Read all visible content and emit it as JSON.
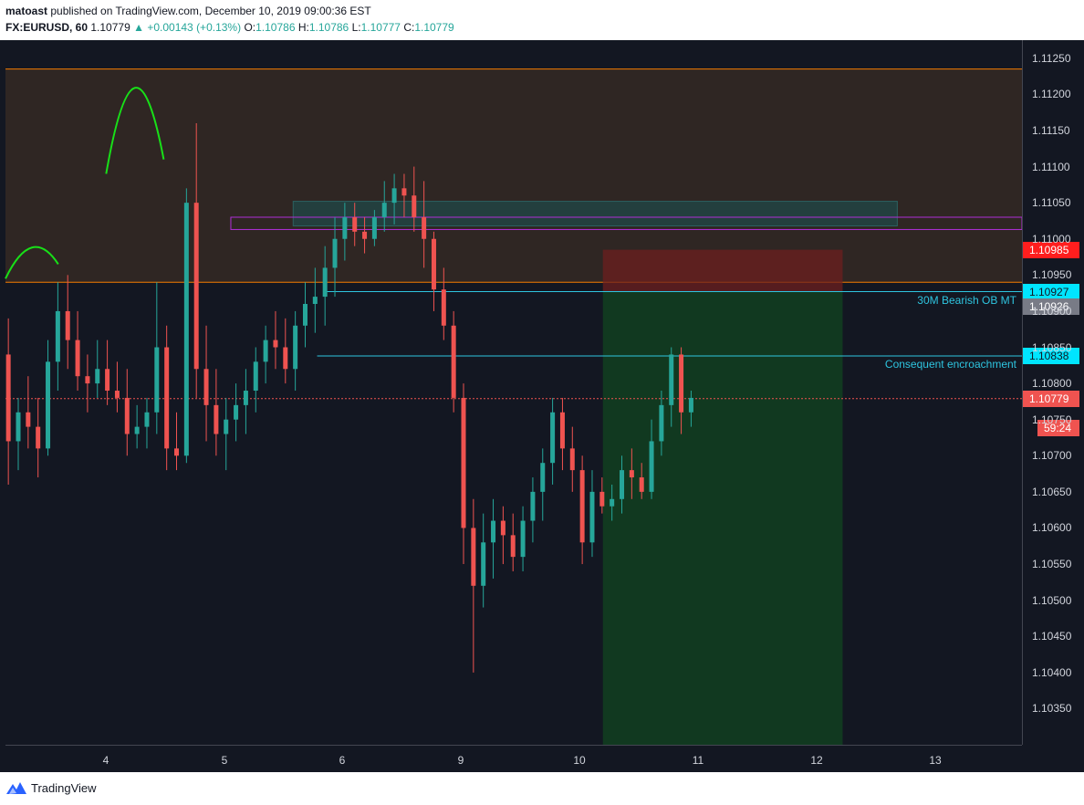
{
  "header": {
    "author": "matoast",
    "published_text": " published on TradingView.com, December 10, 2019 09:00:36 EST",
    "symbol": "FX:EURUSD, 60",
    "last": "1.10779",
    "change": "+0.00143 (+0.13%)",
    "o_label": "O:",
    "o": "1.10786",
    "h_label": "H:",
    "h": "1.10786",
    "l_label": "L:",
    "l": "1.10777",
    "c_label": "C:",
    "c": "1.10779"
  },
  "footer": {
    "brand": "TradingView"
  },
  "colors": {
    "up": "#26a69a",
    "down": "#ef5350",
    "background": "#131722",
    "zone": "#2f2623",
    "orange_line": "#f57c00",
    "cyan": "#2ec5e0",
    "purple": "#b02fd8",
    "pivot_marker": "#18e018",
    "badge_red": "#ff1e1e",
    "badge_cyan": "#00e5ff",
    "badge_gray": "#787b86",
    "badge_price": "#ef5350"
  },
  "annotations": {
    "ob_label": "30M Bearish OB MT",
    "ce_label": "Consequent encroachment"
  },
  "badges": {
    "stop": "1.10985",
    "ob": "1.10927",
    "mid": "1.10926",
    "ce": "1.10838",
    "price": "1.10779",
    "countdown": "59:24"
  },
  "chart_data": {
    "type": "candlestick",
    "y_ticks": [
      "1.11250",
      "1.11200",
      "1.11150",
      "1.11100",
      "1.11050",
      "1.11000",
      "1.10950",
      "1.10900",
      "1.10850",
      "1.10800",
      "1.10750",
      "1.10700",
      "1.10650",
      "1.10600",
      "1.10550",
      "1.10500",
      "1.10450",
      "1.10400",
      "1.10350"
    ],
    "x_ticks": [
      "4",
      "5",
      "6",
      "9",
      "10",
      "11",
      "12",
      "13"
    ],
    "ylim": [
      1.103,
      1.11275
    ],
    "x_range_days": [
      3.15,
      13.75
    ],
    "levels": {
      "zone_top": 1.11235,
      "zone_bottom": 1.1094,
      "ob_line": 1.10927,
      "ce_line": 1.10838,
      "current_price": 1.10779
    },
    "ob_box": {
      "x0": 6.15,
      "x1": 12.45,
      "y_top": 1.11052,
      "y_bottom": 1.11018
    },
    "purple_box": {
      "x0": 5.5,
      "x1": 13.75,
      "y_top": 1.1103,
      "y_bottom": 1.11013
    },
    "position": {
      "x0": 9.38,
      "x1": 11.88,
      "entry": 1.10927,
      "stop": 1.10985,
      "target": 1.103
    },
    "candles": [
      [
        1.1084,
        1.1089,
        1.1066,
        1.1072
      ],
      [
        1.1072,
        1.1078,
        1.1068,
        1.1076
      ],
      [
        1.1076,
        1.1081,
        1.1071,
        1.1074
      ],
      [
        1.1074,
        1.1078,
        1.1067,
        1.1071
      ],
      [
        1.1071,
        1.1086,
        1.107,
        1.1083
      ],
      [
        1.1083,
        1.1094,
        1.1079,
        1.109
      ],
      [
        1.109,
        1.1095,
        1.1082,
        1.1086
      ],
      [
        1.1086,
        1.109,
        1.1079,
        1.1081
      ],
      [
        1.1081,
        1.1084,
        1.1076,
        1.108
      ],
      [
        1.108,
        1.1086,
        1.1078,
        1.1082
      ],
      [
        1.1082,
        1.1086,
        1.1077,
        1.1079
      ],
      [
        1.1079,
        1.1083,
        1.1076,
        1.1078
      ],
      [
        1.1078,
        1.1082,
        1.107,
        1.1073
      ],
      [
        1.1073,
        1.1077,
        1.1071,
        1.1074
      ],
      [
        1.1074,
        1.1078,
        1.1071,
        1.1076
      ],
      [
        1.1076,
        1.1094,
        1.1073,
        1.1085
      ],
      [
        1.1085,
        1.1088,
        1.1068,
        1.1071
      ],
      [
        1.1071,
        1.1076,
        1.1068,
        1.107
      ],
      [
        1.107,
        1.1107,
        1.1069,
        1.1105
      ],
      [
        1.1105,
        1.1116,
        1.1078,
        1.1082
      ],
      [
        1.1082,
        1.1088,
        1.1072,
        1.1077
      ],
      [
        1.1077,
        1.1082,
        1.107,
        1.1073
      ],
      [
        1.1073,
        1.1078,
        1.1068,
        1.1075
      ],
      [
        1.1075,
        1.108,
        1.1072,
        1.1077
      ],
      [
        1.1077,
        1.1082,
        1.1073,
        1.1079
      ],
      [
        1.1079,
        1.1085,
        1.1076,
        1.1083
      ],
      [
        1.1083,
        1.1088,
        1.108,
        1.1086
      ],
      [
        1.1086,
        1.109,
        1.1082,
        1.1085
      ],
      [
        1.1085,
        1.1089,
        1.108,
        1.1082
      ],
      [
        1.1082,
        1.109,
        1.1079,
        1.1088
      ],
      [
        1.1088,
        1.1094,
        1.1085,
        1.1091
      ],
      [
        1.1091,
        1.1096,
        1.1087,
        1.1092
      ],
      [
        1.1092,
        1.1099,
        1.1088,
        1.1096
      ],
      [
        1.1096,
        1.1103,
        1.1092,
        1.11
      ],
      [
        1.11,
        1.1105,
        1.1097,
        1.1103
      ],
      [
        1.1103,
        1.1105,
        1.1099,
        1.1101
      ],
      [
        1.1101,
        1.1103,
        1.1098,
        1.11
      ],
      [
        1.11,
        1.1104,
        1.1099,
        1.1103
      ],
      [
        1.1103,
        1.1108,
        1.1101,
        1.1105
      ],
      [
        1.1105,
        1.1109,
        1.1102,
        1.1107
      ],
      [
        1.1107,
        1.1109,
        1.1103,
        1.1106
      ],
      [
        1.1106,
        1.111,
        1.1101,
        1.1103
      ],
      [
        1.1103,
        1.1108,
        1.1096,
        1.11
      ],
      [
        1.11,
        1.1101,
        1.109,
        1.1093
      ],
      [
        1.1093,
        1.1096,
        1.1086,
        1.1088
      ],
      [
        1.1088,
        1.109,
        1.1076,
        1.1078
      ],
      [
        1.1078,
        1.108,
        1.1055,
        1.106
      ],
      [
        1.106,
        1.1064,
        1.104,
        1.1052
      ],
      [
        1.1052,
        1.1062,
        1.1049,
        1.1058
      ],
      [
        1.1058,
        1.1064,
        1.1053,
        1.1061
      ],
      [
        1.1061,
        1.1063,
        1.1055,
        1.1059
      ],
      [
        1.1059,
        1.1062,
        1.1054,
        1.1056
      ],
      [
        1.1056,
        1.1063,
        1.1054,
        1.1061
      ],
      [
        1.1061,
        1.1067,
        1.1058,
        1.1065
      ],
      [
        1.1065,
        1.1071,
        1.1061,
        1.1069
      ],
      [
        1.1069,
        1.1078,
        1.1066,
        1.1076
      ],
      [
        1.1076,
        1.1078,
        1.1068,
        1.1071
      ],
      [
        1.1071,
        1.1074,
        1.1065,
        1.1068
      ],
      [
        1.1068,
        1.107,
        1.1055,
        1.1058
      ],
      [
        1.1058,
        1.1068,
        1.1056,
        1.1065
      ],
      [
        1.1065,
        1.1067,
        1.1062,
        1.1063
      ],
      [
        1.1063,
        1.1066,
        1.1061,
        1.1064
      ],
      [
        1.1064,
        1.107,
        1.1062,
        1.1068
      ],
      [
        1.1068,
        1.1071,
        1.1064,
        1.1067
      ],
      [
        1.1067,
        1.1069,
        1.1064,
        1.1065
      ],
      [
        1.1065,
        1.1075,
        1.1064,
        1.1072
      ],
      [
        1.1072,
        1.1079,
        1.107,
        1.1077
      ],
      [
        1.1077,
        1.1085,
        1.1074,
        1.1084
      ],
      [
        1.1084,
        1.1085,
        1.1073,
        1.1076
      ],
      [
        1.1076,
        1.1079,
        1.1074,
        1.1078
      ]
    ]
  }
}
